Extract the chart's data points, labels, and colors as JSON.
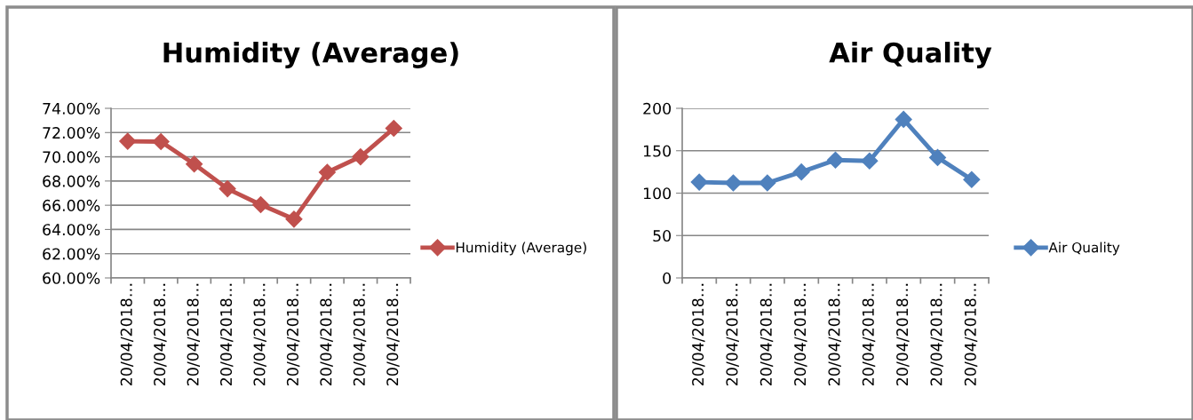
{
  "chart_data": [
    {
      "type": "line",
      "title": "Humidity (Average)",
      "categories": [
        "20/04/2018…",
        "20/04/2018…",
        "20/04/2018…",
        "20/04/2018…",
        "20/04/2018…",
        "20/04/2018…",
        "20/04/2018…",
        "20/04/2018…",
        "20/04/2018…"
      ],
      "series": [
        {
          "name": "Humidity (Average)",
          "color": "#c0504d",
          "values": [
            71.28,
            71.25,
            69.4,
            67.36,
            66.05,
            64.85,
            68.72,
            70.0,
            72.35
          ]
        }
      ],
      "ylim": [
        60,
        74
      ],
      "yticks": [
        {
          "value": 60,
          "label": "60.00%"
        },
        {
          "value": 62,
          "label": "62.00%"
        },
        {
          "value": 64,
          "label": "64.00%"
        },
        {
          "value": 66,
          "label": "66.00%"
        },
        {
          "value": 68,
          "label": "68.00%"
        },
        {
          "value": 70,
          "label": "70.00%"
        },
        {
          "value": 72,
          "label": "72.00%"
        },
        {
          "value": 74,
          "label": "74.00%"
        }
      ],
      "grid": "y",
      "legend": "right",
      "marker": "diamond",
      "line_style": "solid"
    },
    {
      "type": "line",
      "title": "Air Quality",
      "categories": [
        "20/04/2018…",
        "20/04/2018…",
        "20/04/2018…",
        "20/04/2018…",
        "20/04/2018…",
        "20/04/2018…",
        "20/04/2018…",
        "20/04/2018…",
        "20/04/2018…"
      ],
      "series": [
        {
          "name": "Air Quality",
          "color": "#4f81bd",
          "values": [
            113,
            112,
            112,
            125,
            139,
            138,
            187,
            142,
            116
          ]
        }
      ],
      "ylim": [
        0,
        200
      ],
      "yticks": [
        0,
        50,
        100,
        150,
        200
      ],
      "grid": "y",
      "legend": "right",
      "marker": "diamond",
      "line_style": "solid"
    }
  ]
}
